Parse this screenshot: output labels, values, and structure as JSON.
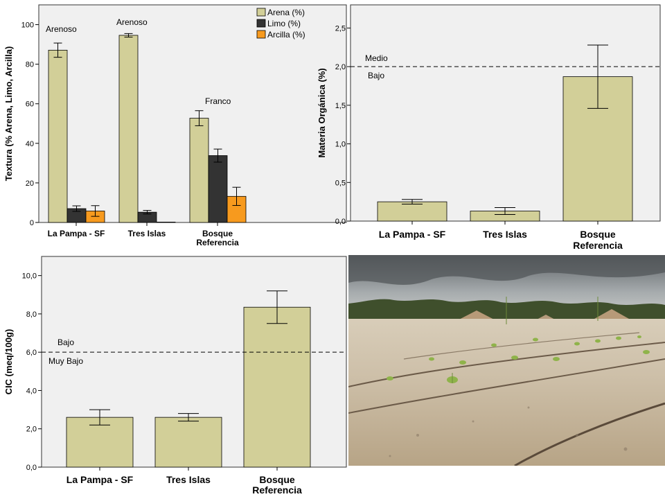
{
  "chart_data": [
    {
      "type": "bar",
      "ylabel": "Textura (% Arena, Limo, Arcilla)",
      "categories": [
        "La Pampa - SF",
        "Tres Islas",
        "Bosque Referencia"
      ],
      "ylim": [
        0,
        110
      ],
      "yticks": [
        0,
        20,
        40,
        60,
        80,
        100
      ],
      "grid": false,
      "legend_position": "top-right",
      "series": [
        {
          "name": "Arena (%)",
          "color": "#d2cf98",
          "values": [
            87.1,
            94.6,
            52.7
          ],
          "error": [
            3.6,
            0.9,
            3.8
          ]
        },
        {
          "name": "Limo (%)",
          "color": "#333333",
          "values": [
            7.0,
            5.2,
            33.8
          ],
          "error": [
            1.4,
            0.9,
            3.3
          ]
        },
        {
          "name": "Arcilla (%)",
          "color": "#f79a1e",
          "values": [
            5.8,
            0.2,
            13.2
          ],
          "error": [
            2.7,
            0,
            4.6
          ]
        }
      ],
      "annotations": [
        {
          "category": "La Pampa - SF",
          "text": "Arenoso"
        },
        {
          "category": "Tres Islas",
          "text": "Arenoso"
        },
        {
          "category": "Bosque Referencia",
          "text": "Franco"
        }
      ]
    },
    {
      "type": "bar",
      "ylabel": "Materia Orgánica (%)",
      "categories": [
        "La Pampa - SF",
        "Tres Islas",
        "Bosque Referencia"
      ],
      "tick_labels": [
        "La Pampa - SF",
        "Tres Islas",
        "Bosque",
        "Referencia"
      ],
      "ylim": [
        0,
        2.8
      ],
      "yticks": [
        "0,0",
        "0,5",
        "1,0",
        "1,5",
        "2,0",
        "2,5"
      ],
      "grid": false,
      "series": [
        {
          "color": "#d2cf98",
          "values": [
            0.25,
            0.13,
            1.87
          ],
          "error": [
            0.03,
            0.045,
            0.41
          ]
        }
      ],
      "reference_line": {
        "y": 2.0,
        "above_label": "Medio",
        "below_label": "Bajo"
      }
    },
    {
      "type": "bar",
      "ylabel": "CIC (meq/100g)",
      "categories": [
        "La Pampa - SF",
        "Tres Islas",
        "Bosque Referencia"
      ],
      "tick_labels": [
        "La Pampa - SF",
        "Tres Islas",
        "Bosque",
        "Referencia"
      ],
      "ylim": [
        0,
        11
      ],
      "yticks": [
        "0,0",
        "2,0",
        "4,0",
        "6,0",
        "8,0",
        "10,0"
      ],
      "grid": false,
      "series": [
        {
          "color": "#d2cf98",
          "values": [
            2.6,
            2.6,
            8.35
          ],
          "error": [
            0.4,
            0.2,
            0.85
          ]
        }
      ],
      "reference_line": {
        "y": 6.0,
        "above_label": "Bajo",
        "below_label": "Muy Bajo"
      }
    }
  ]
}
